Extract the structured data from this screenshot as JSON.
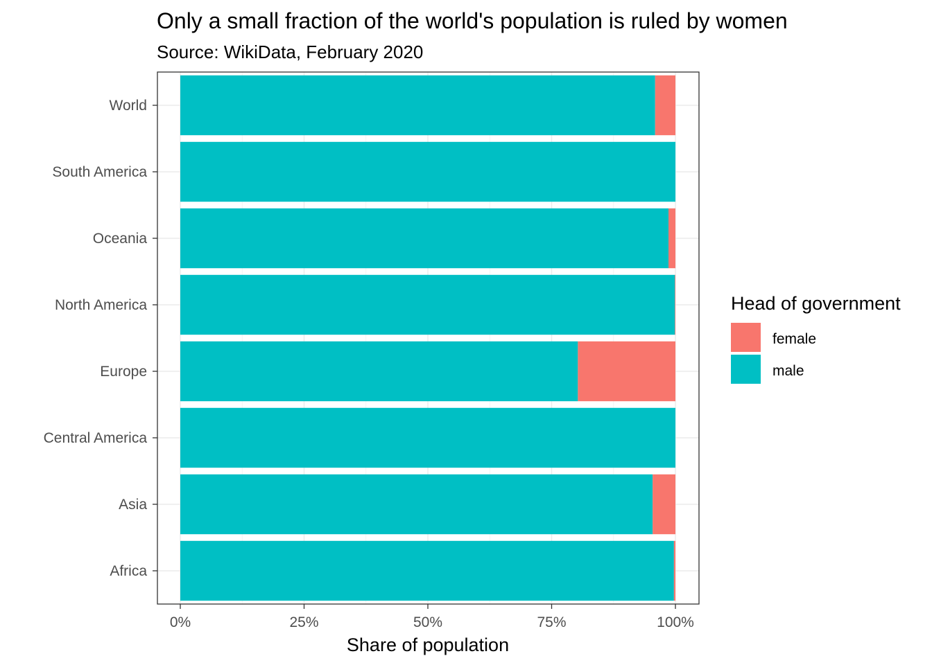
{
  "chart_data": {
    "type": "bar",
    "orientation": "horizontal",
    "stacked": true,
    "title": "Only a small fraction of the world's population is ruled by women",
    "subtitle": "Source: WikiData, February 2020",
    "xlabel": "Share of population",
    "ylabel": "",
    "xlim": [
      0,
      100
    ],
    "x_ticks": [
      0,
      25,
      50,
      75,
      100
    ],
    "x_tick_labels": [
      "0%",
      "25%",
      "50%",
      "75%",
      "100%"
    ],
    "grid": true,
    "categories": [
      "World",
      "South America",
      "Oceania",
      "North America",
      "Europe",
      "Central America",
      "Asia",
      "Africa"
    ],
    "series": [
      {
        "name": "male",
        "color": "#00BFC4",
        "values": [
          95.9,
          100.0,
          98.6,
          99.9,
          80.3,
          100.0,
          95.4,
          99.7
        ]
      },
      {
        "name": "female",
        "color": "#F8766D",
        "values": [
          4.1,
          0.0,
          1.4,
          0.1,
          19.7,
          0.0,
          4.6,
          0.3
        ]
      }
    ],
    "legend": {
      "title": "Head of government",
      "position": "right",
      "items": [
        {
          "label": "female",
          "color": "#F8766D"
        },
        {
          "label": "male",
          "color": "#00BFC4"
        }
      ]
    }
  }
}
